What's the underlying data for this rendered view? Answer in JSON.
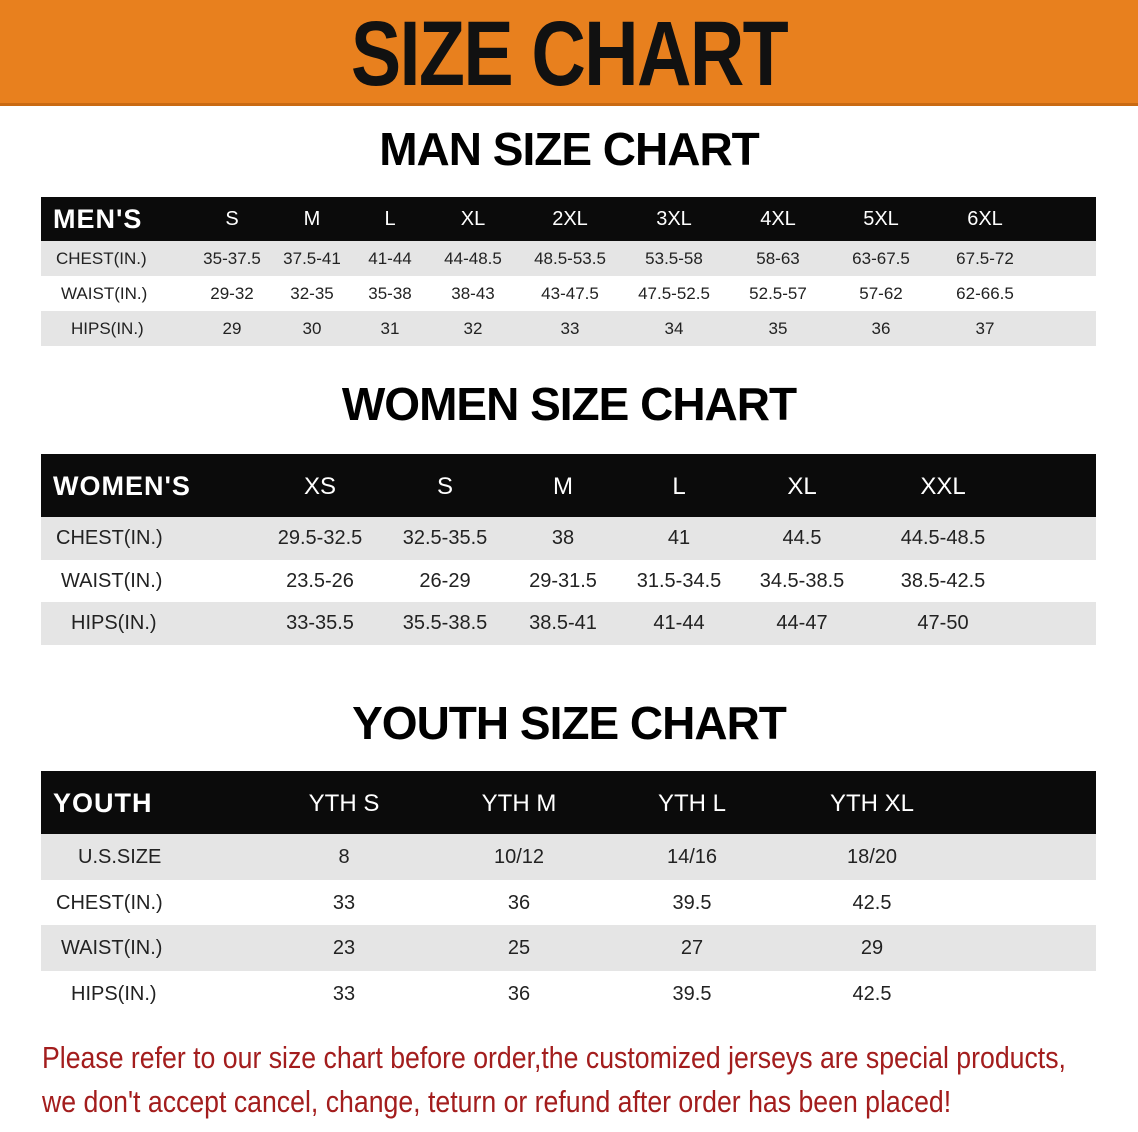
{
  "banner": {
    "title": "SIZE CHART",
    "color": "#e8801e"
  },
  "men": {
    "title": "MAN SIZE CHART",
    "header_label": "MEN'S",
    "sizes": [
      "S",
      "M",
      "L",
      "XL",
      "2XL",
      "3XL",
      "4XL",
      "5XL",
      "6XL"
    ],
    "rows": [
      {
        "label": "CHEST(IN.)",
        "values": [
          "35-37.5",
          "37.5-41",
          "41-44",
          "44-48.5",
          "48.5-53.5",
          "53.5-58",
          "58-63",
          "63-67.5",
          "67.5-72"
        ]
      },
      {
        "label": "WAIST(IN.)",
        "values": [
          "29-32",
          "32-35",
          "35-38",
          "38-43",
          "43-47.5",
          "47.5-52.5",
          "52.5-57",
          "57-62",
          "62-66.5"
        ]
      },
      {
        "label": "HIPS(IN.)",
        "values": [
          "29",
          "30",
          "31",
          "32",
          "33",
          "34",
          "35",
          "36",
          "37"
        ]
      }
    ]
  },
  "women": {
    "title": "WOMEN SIZE CHART",
    "header_label": "WOMEN'S",
    "sizes": [
      "XS",
      "S",
      "M",
      "L",
      "XL",
      "XXL"
    ],
    "rows": [
      {
        "label": "CHEST(IN.)",
        "values": [
          "29.5-32.5",
          "32.5-35.5",
          "38",
          "41",
          "44.5",
          "44.5-48.5"
        ]
      },
      {
        "label": "WAIST(IN.)",
        "values": [
          "23.5-26",
          "26-29",
          "29-31.5",
          "31.5-34.5",
          "34.5-38.5",
          "38.5-42.5"
        ]
      },
      {
        "label": "HIPS(IN.)",
        "values": [
          "33-35.5",
          "35.5-38.5",
          "38.5-41",
          "41-44",
          "44-47",
          "47-50"
        ]
      }
    ]
  },
  "youth": {
    "title": "YOUTH SIZE CHART",
    "header_label": "YOUTH",
    "sizes": [
      "YTH S",
      "YTH M",
      "YTH L",
      "YTH XL"
    ],
    "rows": [
      {
        "label": "U.S.SIZE",
        "values": [
          "8",
          "10/12",
          "14/16",
          "18/20"
        ]
      },
      {
        "label": "CHEST(IN.)",
        "values": [
          "33",
          "36",
          "39.5",
          "42.5"
        ]
      },
      {
        "label": "WAIST(IN.)",
        "values": [
          "23",
          "25",
          "27",
          "29"
        ]
      },
      {
        "label": "HIPS(IN.)",
        "values": [
          "33",
          "36",
          "39.5",
          "42.5"
        ]
      }
    ]
  },
  "notice": {
    "line1": "Please refer to our size chart before order,the customized jerseys are special products,",
    "line2": "we don't accept cancel, change, teturn or refund after order has been placed!",
    "color": "#a31d1d"
  }
}
